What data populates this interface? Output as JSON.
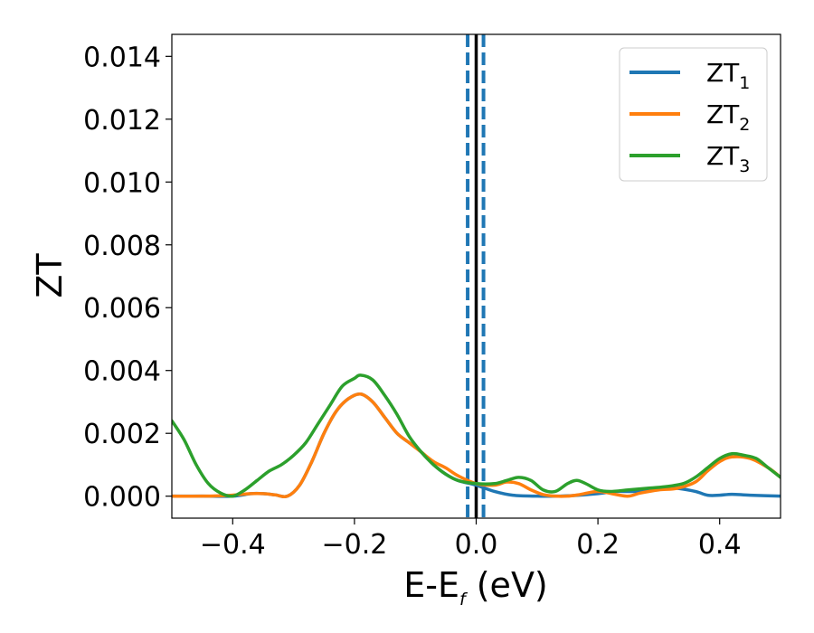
{
  "chart_data": {
    "type": "line",
    "title": "",
    "xlabel": {
      "main": "E-E",
      "sub": "f",
      "rest": " (eV)"
    },
    "ylabel": "ZT",
    "xlim": [
      -0.5,
      0.5
    ],
    "ylim": [
      -0.0007,
      0.0147
    ],
    "xticks": [
      -0.4,
      -0.2,
      0.0,
      0.2,
      0.4
    ],
    "xtick_labels": [
      "−0.4",
      "−0.2",
      "0.0",
      "0.2",
      "0.4"
    ],
    "yticks": [
      0.0,
      0.002,
      0.004,
      0.006,
      0.008,
      0.01,
      0.012,
      0.014
    ],
    "ytick_labels": [
      "0.000",
      "0.002",
      "0.004",
      "0.006",
      "0.008",
      "0.010",
      "0.012",
      "0.014"
    ],
    "grid": false,
    "legend_position": "top-right",
    "vlines": [
      {
        "x": -0.014,
        "style": "dashed",
        "color": "#1f77b4"
      },
      {
        "x": 0.0,
        "style": "solid",
        "color": "#000000"
      },
      {
        "x": 0.012,
        "style": "dashed",
        "color": "#1f77b4"
      }
    ],
    "series": [
      {
        "name": {
          "main": "ZT",
          "sub": "1"
        },
        "color": "#1f77b4",
        "points": [
          [
            -0.5,
            0.0
          ],
          [
            -0.45,
            0.0
          ],
          [
            -0.4,
            0.0
          ],
          [
            -0.37,
            8e-05
          ],
          [
            -0.35,
            8e-05
          ],
          [
            -0.33,
            4e-05
          ],
          [
            -0.31,
            0.0
          ],
          [
            -0.29,
            0.00035
          ],
          [
            -0.27,
            0.0011
          ],
          [
            -0.25,
            0.002
          ],
          [
            -0.23,
            0.0027
          ],
          [
            -0.21,
            0.0031
          ],
          [
            -0.19,
            0.00325
          ],
          [
            -0.17,
            0.003
          ],
          [
            -0.15,
            0.0025
          ],
          [
            -0.13,
            0.002
          ],
          [
            -0.11,
            0.0017
          ],
          [
            -0.09,
            0.0014
          ],
          [
            -0.07,
            0.001
          ],
          [
            -0.05,
            0.0007
          ],
          [
            -0.03,
            0.0005
          ],
          [
            0.0,
            0.00035
          ],
          [
            0.03,
            0.00015
          ],
          [
            0.06,
            3e-05
          ],
          [
            0.1,
            0.0
          ],
          [
            0.13,
            0.0
          ],
          [
            0.16,
            2e-05
          ],
          [
            0.2,
            8e-05
          ],
          [
            0.23,
            0.00015
          ],
          [
            0.26,
            0.00015
          ],
          [
            0.28,
            0.0002
          ],
          [
            0.3,
            0.00025
          ],
          [
            0.33,
            0.00025
          ],
          [
            0.36,
            0.00015
          ],
          [
            0.38,
            3e-05
          ],
          [
            0.4,
            3e-05
          ],
          [
            0.42,
            6e-05
          ],
          [
            0.45,
            3e-05
          ],
          [
            0.5,
            0.0
          ]
        ]
      },
      {
        "name": {
          "main": "ZT",
          "sub": "2"
        },
        "color": "#ff7f0e",
        "points": [
          [
            -0.5,
            0.0
          ],
          [
            -0.45,
            0.0
          ],
          [
            -0.41,
            2e-05
          ],
          [
            -0.37,
            8e-05
          ],
          [
            -0.35,
            8e-05
          ],
          [
            -0.33,
            4e-05
          ],
          [
            -0.31,
            0.0
          ],
          [
            -0.29,
            0.00035
          ],
          [
            -0.27,
            0.0011
          ],
          [
            -0.25,
            0.002
          ],
          [
            -0.23,
            0.0027
          ],
          [
            -0.21,
            0.0031
          ],
          [
            -0.19,
            0.00325
          ],
          [
            -0.17,
            0.003
          ],
          [
            -0.15,
            0.0025
          ],
          [
            -0.13,
            0.002
          ],
          [
            -0.11,
            0.0017
          ],
          [
            -0.09,
            0.0014
          ],
          [
            -0.07,
            0.0011
          ],
          [
            -0.05,
            0.0009
          ],
          [
            -0.03,
            0.00065
          ],
          [
            0.0,
            0.0004
          ],
          [
            0.03,
            0.00035
          ],
          [
            0.05,
            0.00045
          ],
          [
            0.07,
            0.0004
          ],
          [
            0.09,
            0.0002
          ],
          [
            0.11,
            5e-05
          ],
          [
            0.13,
            0.0
          ],
          [
            0.15,
            0.0
          ],
          [
            0.17,
            5e-05
          ],
          [
            0.2,
            0.00015
          ],
          [
            0.23,
            5e-05
          ],
          [
            0.25,
            0.0
          ],
          [
            0.27,
            0.0001
          ],
          [
            0.3,
            0.0002
          ],
          [
            0.33,
            0.00025
          ],
          [
            0.36,
            0.00045
          ],
          [
            0.38,
            0.0008
          ],
          [
            0.4,
            0.0011
          ],
          [
            0.42,
            0.00125
          ],
          [
            0.45,
            0.0012
          ],
          [
            0.48,
            0.0009
          ],
          [
            0.5,
            0.0006
          ]
        ]
      },
      {
        "name": {
          "main": "ZT",
          "sub": "3"
        },
        "color": "#2ca02c",
        "points": [
          [
            -0.5,
            0.0024
          ],
          [
            -0.48,
            0.0018
          ],
          [
            -0.46,
            0.001
          ],
          [
            -0.44,
            0.0004
          ],
          [
            -0.42,
            0.0001
          ],
          [
            -0.4,
            0.0
          ],
          [
            -0.38,
            0.0002
          ],
          [
            -0.36,
            0.0005
          ],
          [
            -0.34,
            0.0008
          ],
          [
            -0.32,
            0.001
          ],
          [
            -0.3,
            0.0013
          ],
          [
            -0.28,
            0.0017
          ],
          [
            -0.26,
            0.0023
          ],
          [
            -0.24,
            0.0029
          ],
          [
            -0.22,
            0.0035
          ],
          [
            -0.2,
            0.00375
          ],
          [
            -0.19,
            0.00385
          ],
          [
            -0.17,
            0.0037
          ],
          [
            -0.15,
            0.0032
          ],
          [
            -0.13,
            0.0026
          ],
          [
            -0.11,
            0.0019
          ],
          [
            -0.09,
            0.0014
          ],
          [
            -0.07,
            0.001
          ],
          [
            -0.05,
            0.0007
          ],
          [
            -0.03,
            0.0005
          ],
          [
            0.0,
            0.0004
          ],
          [
            0.03,
            0.0004
          ],
          [
            0.05,
            0.0005
          ],
          [
            0.07,
            0.0006
          ],
          [
            0.09,
            0.0005
          ],
          [
            0.11,
            0.0002
          ],
          [
            0.13,
            0.00015
          ],
          [
            0.15,
            0.0004
          ],
          [
            0.165,
            0.0005
          ],
          [
            0.18,
            0.0004
          ],
          [
            0.2,
            0.0002
          ],
          [
            0.22,
            0.00015
          ],
          [
            0.25,
            0.0002
          ],
          [
            0.28,
            0.00025
          ],
          [
            0.31,
            0.0003
          ],
          [
            0.34,
            0.0004
          ],
          [
            0.36,
            0.0006
          ],
          [
            0.38,
            0.0009
          ],
          [
            0.4,
            0.0012
          ],
          [
            0.42,
            0.00135
          ],
          [
            0.44,
            0.0013
          ],
          [
            0.46,
            0.0012
          ],
          [
            0.48,
            0.0009
          ],
          [
            0.5,
            0.0006
          ]
        ]
      }
    ]
  }
}
